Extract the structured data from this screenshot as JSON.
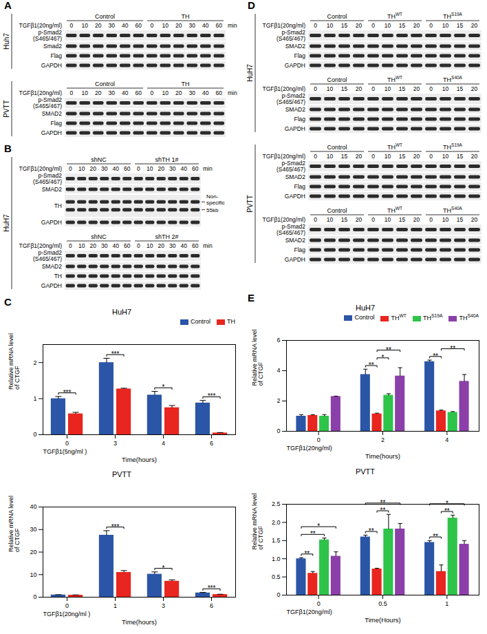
{
  "blots": [
    {
      "letter": "A",
      "cells": [
        {
          "name": "Huh7",
          "blots": [
            {
              "treatment": "TGFβ1(20ng/ml)",
              "times": [
                0,
                10,
                20,
                30,
                40,
                60
              ],
              "unit": "min",
              "groups": [
                {
                  "name": "Control"
                },
                {
                  "name": "TH"
                }
              ],
              "rows": [
                {
                  "name": "p-Smad2 (S465/467)"
                },
                {
                  "name": "Smad2"
                },
                {
                  "name": "Flag"
                },
                {
                  "name": "GAPDH"
                }
              ]
            }
          ]
        },
        {
          "name": "PVTT",
          "blots": [
            {
              "treatment": "TGFβ1(20ng/ml)",
              "times": [
                0,
                10,
                20,
                30,
                40,
                60
              ],
              "unit": "min",
              "groups": [
                {
                  "name": "Control"
                },
                {
                  "name": "TH"
                }
              ],
              "rows": [
                {
                  "name": "p-Smad2 (S465/467)"
                },
                {
                  "name": "SMAD2"
                },
                {
                  "name": "Flag"
                },
                {
                  "name": "GAPDH"
                }
              ]
            }
          ]
        }
      ]
    },
    {
      "letter": "B",
      "cells": [
        {
          "name": "HuH7",
          "blots": [
            {
              "treatment": "TGFβ1(20ng/ml)",
              "times": [
                0,
                10,
                20,
                30,
                40,
                60
              ],
              "unit": "min",
              "groups": [
                {
                  "name": "shNC"
                },
                {
                  "name": "shTH 1#"
                }
              ],
              "rows": [
                {
                  "name": "p-Smad2 (S465/467)"
                },
                {
                  "name": "SMAD2"
                },
                {
                  "name": "TH",
                  "side_labels": [
                    "Non-specific",
                    "55kb"
                  ]
                },
                {
                  "name": "GAPDH"
                }
              ]
            },
            {
              "treatment": "TGFβ1(20ng/ml)",
              "times": [
                0,
                10,
                20,
                30,
                40,
                60
              ],
              "unit": "min",
              "groups": [
                {
                  "name": "shNC"
                },
                {
                  "name": "shTH 2#"
                }
              ],
              "rows": [
                {
                  "name": "p-Smad2 (S465/467)"
                },
                {
                  "name": "SMAD2"
                },
                {
                  "name": "TH"
                },
                {
                  "name": "GAPDH"
                }
              ]
            }
          ]
        }
      ]
    },
    {
      "letter": "D",
      "cells": [
        {
          "name": "HuH7",
          "blots": [
            {
              "treatment": "TGFβ1(20ng/ml)",
              "times": [
                0,
                10,
                15,
                20
              ],
              "groups": [
                {
                  "name": "Control"
                },
                {
                  "name": "TH",
                  "superscript": "WT"
                },
                {
                  "name": "TH",
                  "superscript": "S19A"
                }
              ],
              "rows": [
                {
                  "name": "p-Smad2 (S465/467)"
                },
                {
                  "name": "SMAD2"
                },
                {
                  "name": "Flag"
                },
                {
                  "name": "GAPDH"
                }
              ]
            },
            {
              "treatment": "TGFβ1(20ng/ml)",
              "times": [
                0,
                10,
                15,
                20
              ],
              "groups": [
                {
                  "name": "Control"
                },
                {
                  "name": "TH",
                  "superscript": "WT"
                },
                {
                  "name": "TH",
                  "superscript": "S40A"
                }
              ],
              "rows": [
                {
                  "name": "p-Smad2 (S465/467)"
                },
                {
                  "name": "SMAD2"
                },
                {
                  "name": "Flag"
                },
                {
                  "name": "GAPDH"
                }
              ]
            }
          ]
        },
        {
          "name": "PVTT",
          "blots": [
            {
              "treatment": "TGFβ1(20ng/ml)",
              "times": [
                0,
                10,
                15,
                20
              ],
              "groups": [
                {
                  "name": "Control"
                },
                {
                  "name": "TH",
                  "superscript": "WT"
                },
                {
                  "name": "TH",
                  "superscript": "S19A"
                }
              ],
              "rows": [
                {
                  "name": "p-Smad2 (S465/467)"
                },
                {
                  "name": "SMAD2"
                },
                {
                  "name": "Flag"
                },
                {
                  "name": "GAPDH"
                }
              ]
            },
            {
              "treatment": "TGFβ1(20ng/ml)",
              "times": [
                0,
                10,
                15,
                20
              ],
              "groups": [
                {
                  "name": "Control"
                },
                {
                  "name": "TH",
                  "superscript": "WT"
                },
                {
                  "name": "TH",
                  "superscript": "S40A"
                }
              ],
              "rows": [
                {
                  "name": "p-Smad2 (S465/467)"
                },
                {
                  "name": "SMAD2"
                },
                {
                  "name": "Flag"
                },
                {
                  "name": "GAPDH"
                }
              ]
            }
          ]
        }
      ]
    }
  ],
  "chart_data": [
    {
      "type": "bar",
      "panel": "C",
      "title": "HuH7",
      "ylabel": "Relative mRNA level of CTGF",
      "xlabel": "Time(hours)",
      "treatment": "TGFβ1(5ng/ml )",
      "categories": [
        "0",
        "3",
        "4",
        "6"
      ],
      "series": [
        {
          "name": "Control",
          "color": "#2b55a6",
          "values": [
            1.0,
            2.0,
            1.1,
            0.88
          ],
          "errors": [
            0.06,
            0.12,
            0.1,
            0.07
          ]
        },
        {
          "name": "TH",
          "color": "#e8251f",
          "values": [
            0.58,
            1.27,
            0.75,
            0.05
          ],
          "errors": [
            0.04,
            0.02,
            0.06,
            0.01
          ]
        }
      ],
      "ylim": [
        0,
        2.5
      ],
      "yticks": [
        0,
        1,
        2
      ],
      "legend": "top-right",
      "significance": [
        {
          "category": 0,
          "pair": [
            0,
            1
          ],
          "label": "***"
        },
        {
          "category": 1,
          "pair": [
            0,
            1
          ],
          "label": "***"
        },
        {
          "category": 2,
          "pair": [
            0,
            1
          ],
          "label": "*"
        },
        {
          "category": 3,
          "pair": [
            0,
            1
          ],
          "label": "***"
        }
      ]
    },
    {
      "type": "bar",
      "title": "PVTT",
      "ylabel": "Relative mRNA level of CTGF",
      "xlabel": "Time(hours)",
      "treatment": "TGFβ1(20ng/ml )",
      "categories": [
        "0",
        "1",
        "3",
        "6"
      ],
      "series": [
        {
          "name": "Control",
          "color": "#2b55a6",
          "values": [
            1.0,
            27.5,
            10.2,
            1.9
          ],
          "errors": [
            0.1,
            2.0,
            1.0,
            0.2
          ]
        },
        {
          "name": "TH",
          "color": "#e8251f",
          "values": [
            0.9,
            11.0,
            7.1,
            1.2
          ],
          "errors": [
            0.1,
            0.8,
            0.6,
            0.1
          ]
        }
      ],
      "ylim": [
        0,
        40
      ],
      "yticks": [
        0,
        10,
        20,
        30,
        40
      ],
      "significance": [
        {
          "category": 1,
          "pair": [
            0,
            1
          ],
          "label": "***"
        },
        {
          "category": 2,
          "pair": [
            0,
            1
          ],
          "label": "*"
        },
        {
          "category": 3,
          "pair": [
            0,
            1
          ],
          "label": "***"
        }
      ]
    },
    {
      "type": "bar",
      "panel": "E",
      "title": "HuH7",
      "ylabel": "Relative mRNA level of CTGF",
      "xlabel": "Time(hours)",
      "treatment": "TGFβ1(20ng/ml)",
      "categories": [
        "0",
        "2",
        "4"
      ],
      "series": [
        {
          "name": "Control",
          "color": "#2b55a6",
          "values": [
            1.0,
            3.75,
            4.6
          ],
          "errors": [
            0.1,
            0.35,
            0.1
          ]
        },
        {
          "name": "TH",
          "superscript": "WT",
          "color": "#e8251f",
          "values": [
            1.05,
            1.15,
            1.35
          ],
          "errors": [
            0.05,
            0.05,
            0.05
          ]
        },
        {
          "name": "TH",
          "superscript": "S19A",
          "color": "#2ec44a",
          "values": [
            1.0,
            2.38,
            1.25
          ],
          "errors": [
            0.1,
            0.1,
            0.05
          ]
        },
        {
          "name": "TH",
          "superscript": "S40A",
          "color": "#8b3fa8",
          "values": [
            2.3,
            3.65,
            3.3
          ],
          "errors": [
            0.02,
            0.55,
            0.45
          ]
        }
      ],
      "ylim": [
        0,
        6
      ],
      "yticks": [
        0,
        2,
        4,
        6
      ],
      "legend": "top-right",
      "significance": [
        {
          "category": 1,
          "pair": [
            0,
            1
          ],
          "label": "**"
        },
        {
          "category": 1,
          "pair": [
            1,
            2
          ],
          "label": "*"
        },
        {
          "category": 1,
          "pair": [
            1,
            3
          ],
          "label": "**"
        },
        {
          "category": 2,
          "pair": [
            0,
            1
          ],
          "label": "**"
        },
        {
          "category": 2,
          "pair": [
            1,
            3
          ],
          "label": "**"
        }
      ]
    },
    {
      "type": "bar",
      "title": "PVTT",
      "ylabel": "Relative mRNA level of CTGF",
      "xlabel": "Time(Hours)",
      "treatment": "TGFβ1(20ng/ml)",
      "categories": [
        "0",
        "0.5",
        "1"
      ],
      "series": [
        {
          "name": "Control",
          "color": "#2b55a6",
          "values": [
            1.0,
            1.6,
            1.45
          ],
          "errors": [
            0.03,
            0.05,
            0.05
          ]
        },
        {
          "name": "TH",
          "superscript": "WT",
          "color": "#e8251f",
          "values": [
            0.6,
            0.72,
            0.65
          ],
          "errors": [
            0.05,
            0.02,
            0.18
          ]
        },
        {
          "name": "TH",
          "superscript": "S19A",
          "color": "#2ec44a",
          "values": [
            1.52,
            1.82,
            2.12
          ],
          "errors": [
            0.05,
            0.4,
            0.08
          ]
        },
        {
          "name": "TH",
          "superscript": "S40A",
          "color": "#8b3fa8",
          "values": [
            1.07,
            1.82,
            1.4
          ],
          "errors": [
            0.12,
            0.15,
            0.1
          ]
        }
      ],
      "ylim": [
        0,
        2.5
      ],
      "yticks": [
        0,
        0.5,
        {
          "value": 1,
          "label": "1.0"
        },
        1.5,
        {
          "value": 2,
          "label": "2.0"
        },
        2.5
      ],
      "significance": [
        {
          "category": 0,
          "pair": [
            0,
            1
          ],
          "label": "**"
        },
        {
          "category": 0,
          "pair": [
            0,
            2
          ],
          "label": "**"
        },
        {
          "category": 0,
          "pair": [
            0,
            3
          ],
          "label": "*"
        },
        {
          "category": 1,
          "pair": [
            0,
            1
          ],
          "label": "**"
        },
        {
          "category": 1,
          "pair": [
            1,
            2
          ],
          "label": "**"
        },
        {
          "category": 1,
          "pair": [
            0,
            3
          ],
          "label": "**"
        },
        {
          "category": 2,
          "pair": [
            0,
            1
          ],
          "label": "**"
        },
        {
          "category": 2,
          "pair": [
            1,
            2
          ],
          "label": "**"
        },
        {
          "category": 2,
          "pair": [
            0,
            3
          ],
          "label": "*"
        }
      ]
    }
  ]
}
